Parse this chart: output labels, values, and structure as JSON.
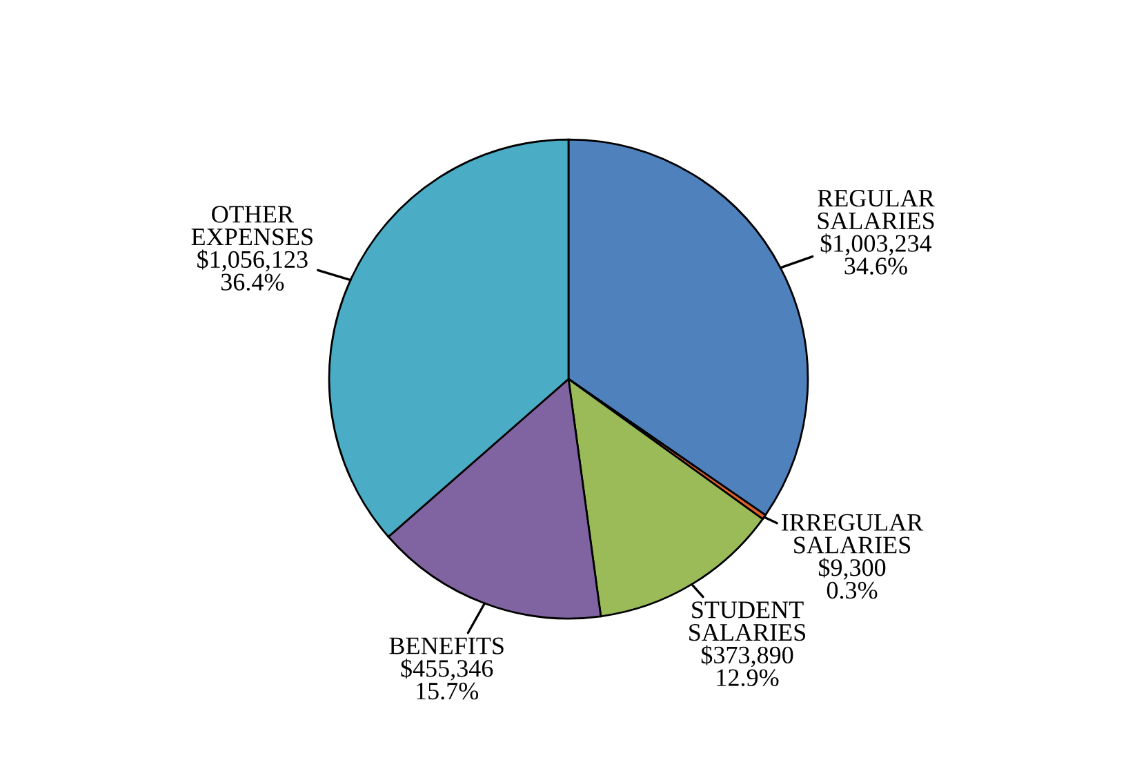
{
  "chart_data": {
    "type": "pie",
    "categories": [
      "REGULAR\nSALARIES",
      "IRREGULAR\nSALARIES",
      "STUDENT\nSALARIES",
      "BENEFITS",
      "OTHER\nEXPENSES"
    ],
    "values": [
      1003234,
      9300,
      373890,
      455346,
      1056123
    ],
    "value_labels": [
      "$1,003,234\n34.6%",
      "$9,300\n0.3%",
      "$373,890\n12.9%",
      "$455,346\n15.7%",
      "$1,056,123\n36.4%"
    ],
    "colors": [
      "#4f81bd",
      "#e0622a",
      "#9bbb59",
      "#8064a2",
      "#4bacc6"
    ],
    "legend": false
  }
}
